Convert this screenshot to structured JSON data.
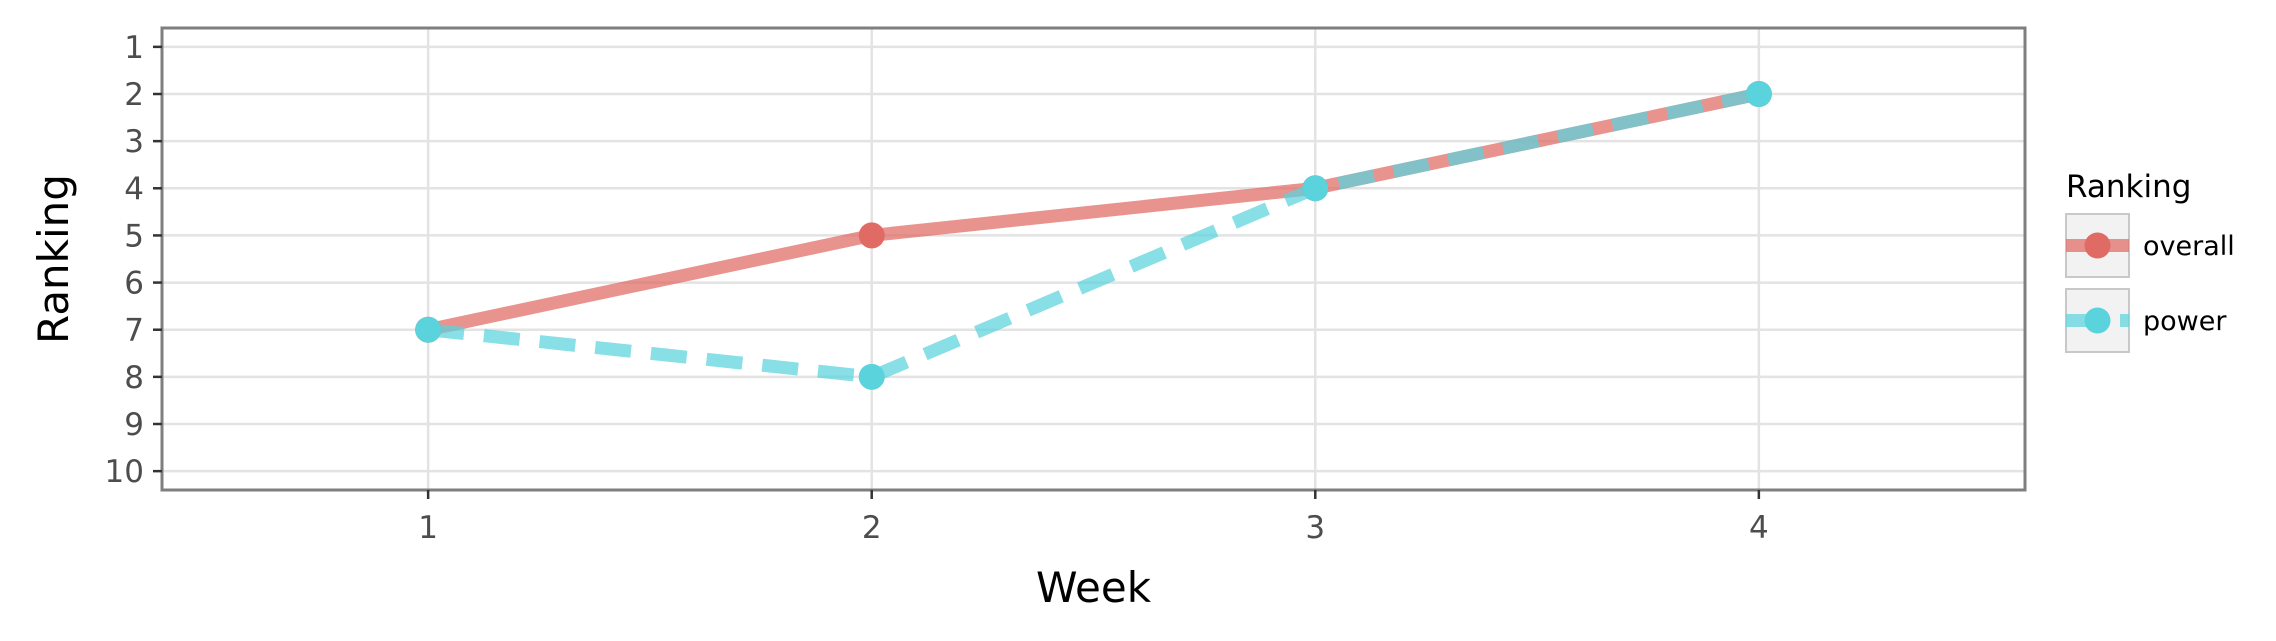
{
  "chart_data": {
    "type": "line",
    "xlabel": "Week",
    "ylabel": "Ranking",
    "x": [
      1,
      2,
      3,
      4
    ],
    "xlim": [
      0.4,
      4.6
    ],
    "x_ticks": [
      "1",
      "2",
      "3",
      "4"
    ],
    "ylim": [
      10.4,
      0.6
    ],
    "y_reversed": true,
    "y_ticks": [
      "1",
      "2",
      "3",
      "4",
      "5",
      "6",
      "7",
      "8",
      "9",
      "10"
    ],
    "grid": true,
    "legend": {
      "title": "Ranking",
      "position": "right"
    },
    "series": [
      {
        "name": "overall",
        "values": [
          7,
          5,
          4,
          2
        ],
        "color": "#e06a64",
        "line_style": "solid"
      },
      {
        "name": "power",
        "values": [
          7,
          8,
          4,
          2
        ],
        "color": "#5ad3dc",
        "line_style": "dashed"
      }
    ]
  }
}
